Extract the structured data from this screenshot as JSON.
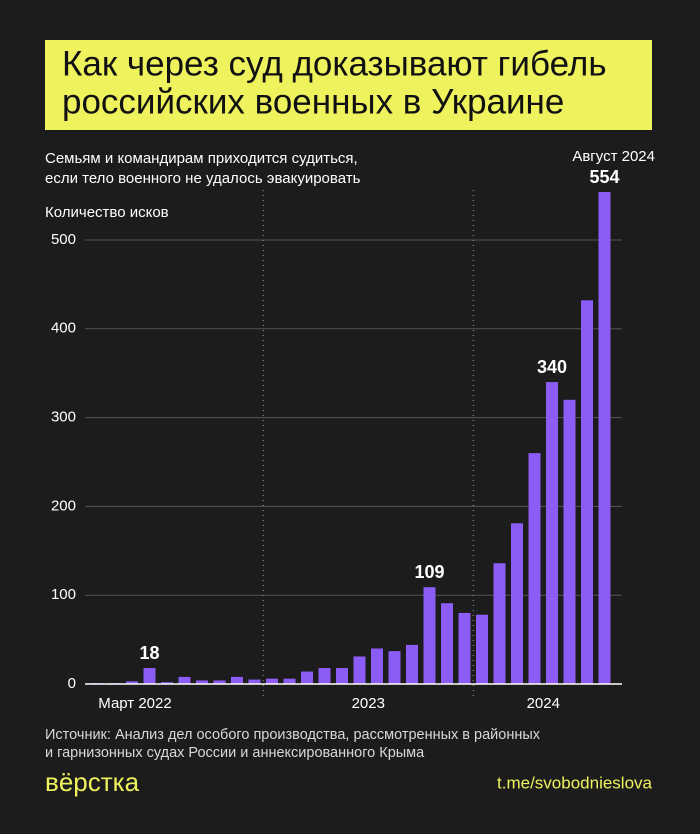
{
  "chart_data": {
    "type": "bar",
    "title": [
      "Как через суд доказывают гибель",
      "российских военных в Украине"
    ],
    "subtitle": [
      "Семьям и командирам приходится судиться,",
      "если тело военного не удалось эвакуировать"
    ],
    "y_label": "Количество исков",
    "annotation": "Август 2024",
    "source": [
      "Источник: Анализ дел особого производства, рассмотренных в районных",
      "и гарнизонных судах России и аннексированного Крыма"
    ],
    "logo": "вёрстка",
    "link": "t.me/svobodnieslova",
    "categories": [
      null,
      null,
      null,
      null,
      null,
      null,
      null,
      null,
      null,
      null,
      null,
      null,
      null,
      null,
      null,
      null,
      null,
      null,
      null,
      null,
      null,
      null,
      null,
      null,
      null,
      null,
      null,
      null,
      null,
      null
    ],
    "period_labels": [
      "Март 2022",
      "2023",
      "2024"
    ],
    "values": [
      1,
      1,
      3,
      18,
      2,
      8,
      4,
      4,
      8,
      5,
      6,
      6,
      14,
      18,
      18,
      31,
      40,
      37,
      44,
      109,
      91,
      80,
      78,
      136,
      181,
      260,
      340,
      320,
      432,
      554
    ],
    "value_labels": [
      null,
      null,
      null,
      "18",
      null,
      null,
      null,
      null,
      null,
      null,
      null,
      null,
      null,
      null,
      null,
      null,
      null,
      null,
      null,
      "109",
      null,
      null,
      null,
      null,
      null,
      null,
      "340",
      null,
      null,
      "554"
    ],
    "color": "#8b5cf6",
    "ylim": [
      0,
      554
    ],
    "yticks": [
      0,
      100,
      200,
      300,
      400,
      500
    ],
    "grid": true
  }
}
